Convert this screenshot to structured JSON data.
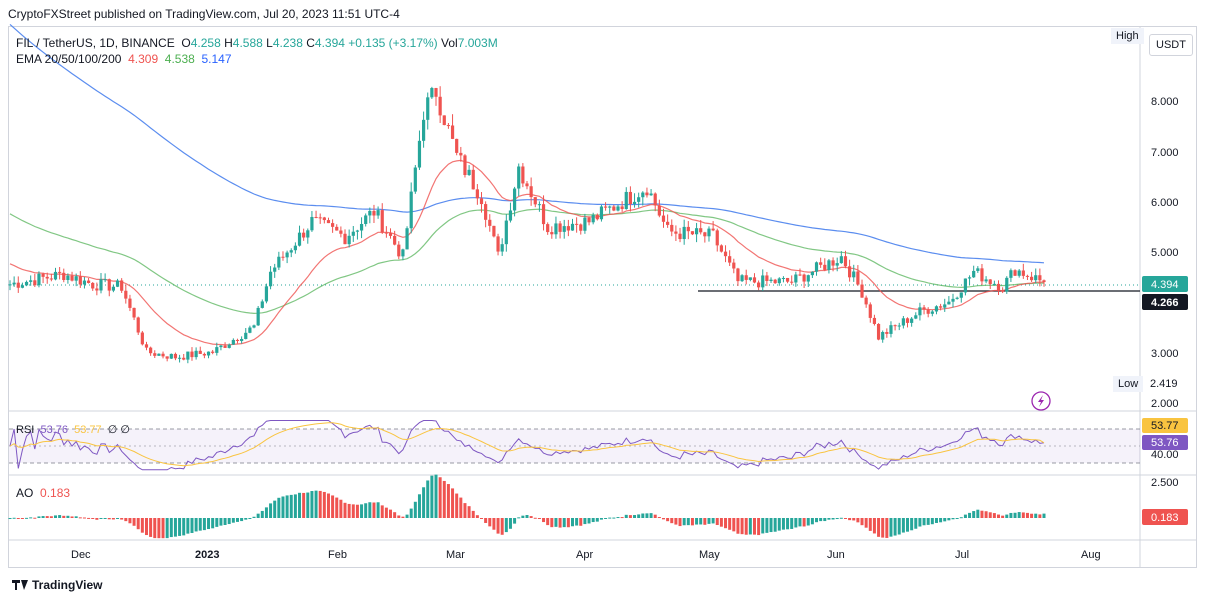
{
  "header": {
    "publisher": "CryptoFXStreet published on TradingView.com, Jul 20, 2023 11:51 UTC-4"
  },
  "legend": {
    "symbol": "FIL / TetherUS, 1D, BINANCE",
    "open_label": "O",
    "open": "4.258",
    "high_label": "H",
    "high": "4.588",
    "low_label": "L",
    "low": "4.238",
    "close_label": "C",
    "close": "4.394",
    "change": "+0.135 (+3.17%)",
    "vol_label": "Vol",
    "vol": "7.003M",
    "ema_label": "EMA 20/50/100/200",
    "ema20": "4.309",
    "ema50": "4.538",
    "ema100": "5.147"
  },
  "price_axis": {
    "currency": "USDT",
    "ticks": [
      "8.000",
      "7.000",
      "6.000",
      "5.000",
      "3.000",
      "2.000"
    ],
    "current_price": "4.394",
    "support_level": "4.266",
    "high_label": "High",
    "low_label": "Low",
    "low_value": "2.419"
  },
  "rsi": {
    "label": "RSI",
    "value": "53.76",
    "ma": "53.77",
    "extra": "∅ ∅",
    "ticks": [
      "40.00"
    ],
    "tag_ma": "53.77",
    "tag_value": "53.76"
  },
  "ao": {
    "label": "AO",
    "value": "0.183",
    "ticks": [
      "2.500"
    ],
    "tag": "0.183"
  },
  "time_axis": [
    "Dec",
    "2023",
    "Feb",
    "Mar",
    "Apr",
    "May",
    "Jun",
    "Jul",
    "Aug"
  ],
  "footer": {
    "brand": "TradingView"
  },
  "colors": {
    "up": "#26a69a",
    "down": "#ef5350",
    "ema20": "#ef5350",
    "ema50": "#4caf50",
    "ema100": "#5b8def",
    "rsi": "#7e57c2",
    "rsi_ma": "#f9c440"
  },
  "chart_data": {
    "type": "candlestick",
    "title": "FIL / TetherUS, 1D, BINANCE",
    "x_range": [
      "2022-11-12",
      "2023-07-20"
    ],
    "y_range": [
      2.0,
      8.6
    ],
    "current_price": 4.394,
    "support_line": 4.266,
    "period_high": 8.78,
    "period_low": 2.419,
    "close_path": [
      [
        "2022-11-12",
        4.35
      ],
      [
        "2022-11-25",
        4.55
      ],
      [
        "2022-12-02",
        4.35
      ],
      [
        "2022-12-09",
        4.3
      ],
      [
        "2022-12-15",
        3.0
      ],
      [
        "2022-12-22",
        2.9
      ],
      [
        "2022-12-31",
        3.0
      ],
      [
        "2023-01-10",
        3.5
      ],
      [
        "2023-01-14",
        4.6
      ],
      [
        "2023-01-24",
        5.6
      ],
      [
        "2023-02-01",
        5.3
      ],
      [
        "2023-02-08",
        5.8
      ],
      [
        "2023-02-15",
        4.9
      ],
      [
        "2023-02-20",
        7.8
      ],
      [
        "2023-02-23",
        8.2
      ],
      [
        "2023-02-28",
        6.9
      ],
      [
        "2023-03-06",
        6.1
      ],
      [
        "2023-03-10",
        4.9
      ],
      [
        "2023-03-15",
        6.7
      ],
      [
        "2023-03-22",
        5.5
      ],
      [
        "2023-04-01",
        5.6
      ],
      [
        "2023-04-15",
        6.3
      ],
      [
        "2023-04-20",
        5.4
      ],
      [
        "2023-05-01",
        5.3
      ],
      [
        "2023-05-07",
        4.4
      ],
      [
        "2023-05-20",
        4.4
      ],
      [
        "2023-06-01",
        4.9
      ],
      [
        "2023-06-06",
        4.2
      ],
      [
        "2023-06-10",
        3.3
      ],
      [
        "2023-06-20",
        3.8
      ],
      [
        "2023-06-27",
        4.0
      ],
      [
        "2023-07-03",
        4.6
      ],
      [
        "2023-07-10",
        4.3
      ],
      [
        "2023-07-13",
        4.65
      ],
      [
        "2023-07-20",
        4.394
      ]
    ],
    "ema_series": [
      {
        "name": "EMA 20",
        "last": 4.309
      },
      {
        "name": "EMA 50",
        "last": 4.538
      },
      {
        "name": "EMA 100",
        "last": 5.147
      }
    ],
    "rsi": {
      "value": 53.76,
      "ma": 53.77
    },
    "ao": {
      "value": 0.183
    }
  }
}
